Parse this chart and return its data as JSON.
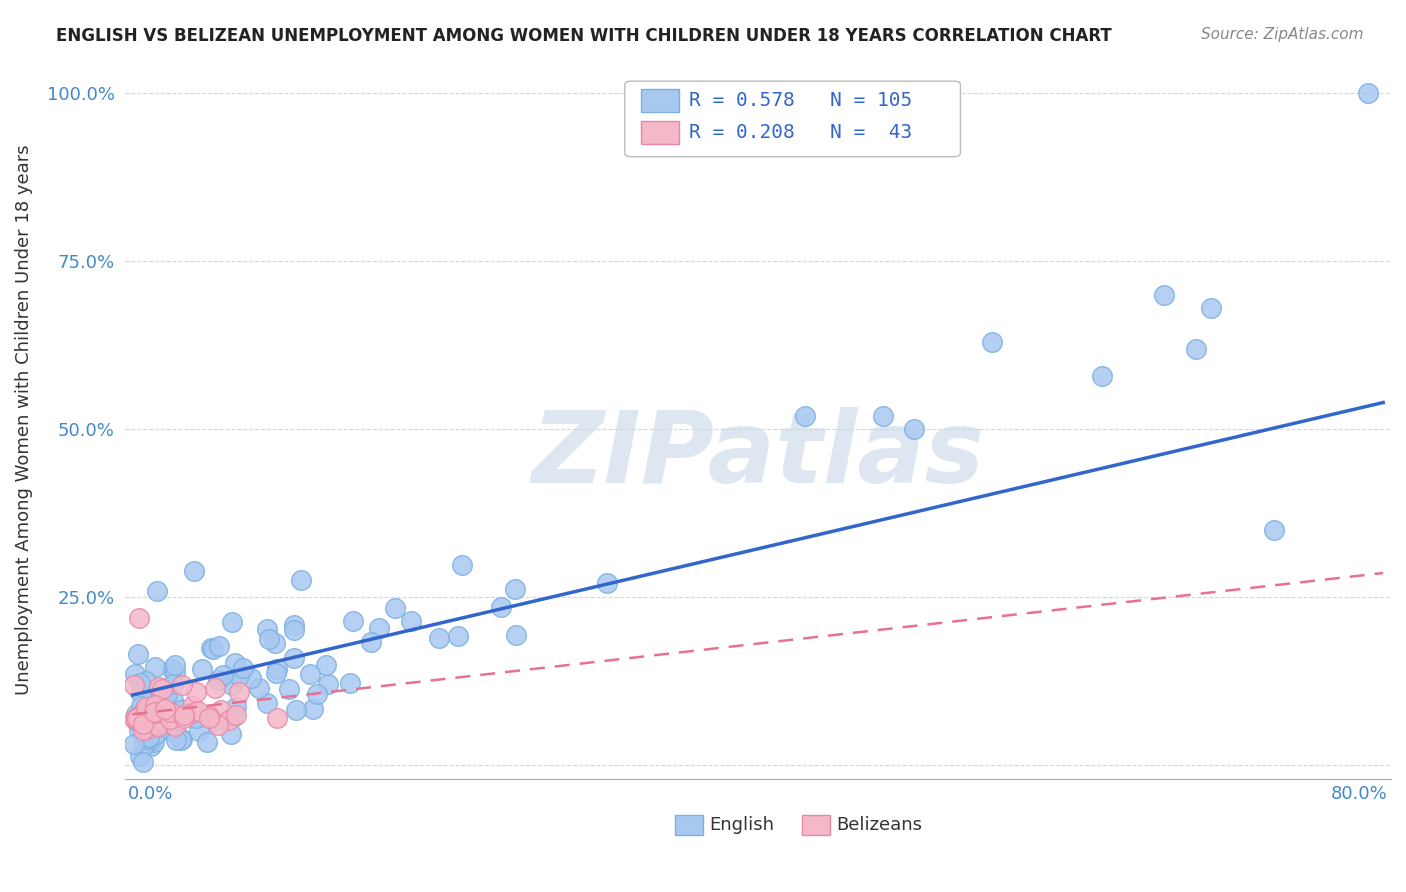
{
  "title": "ENGLISH VS BELIZEAN UNEMPLOYMENT AMONG WOMEN WITH CHILDREN UNDER 18 YEARS CORRELATION CHART",
  "source": "Source: ZipAtlas.com",
  "ylabel": "Unemployment Among Women with Children Under 18 years",
  "xlim": [
    0,
    0.8
  ],
  "ylim": [
    -0.02,
    1.05
  ],
  "yticks": [
    0.0,
    0.25,
    0.5,
    0.75,
    1.0
  ],
  "ytick_labels": [
    "",
    "25.0%",
    "50.0%",
    "75.0%",
    "100.0%"
  ],
  "legend_r1_val": "0.578",
  "legend_n1_val": "105",
  "legend_r2_val": "0.208",
  "legend_n2_val": "43",
  "english_color": "#a8c8f0",
  "english_edge": "#7ab0e0",
  "belizean_color": "#f5b8c8",
  "belizean_edge": "#e888a8",
  "reg_english_color": "#3366cc",
  "reg_belizean_color": "#e87090",
  "watermark": "ZIPatlas",
  "watermark_color": "#c8d8e8"
}
